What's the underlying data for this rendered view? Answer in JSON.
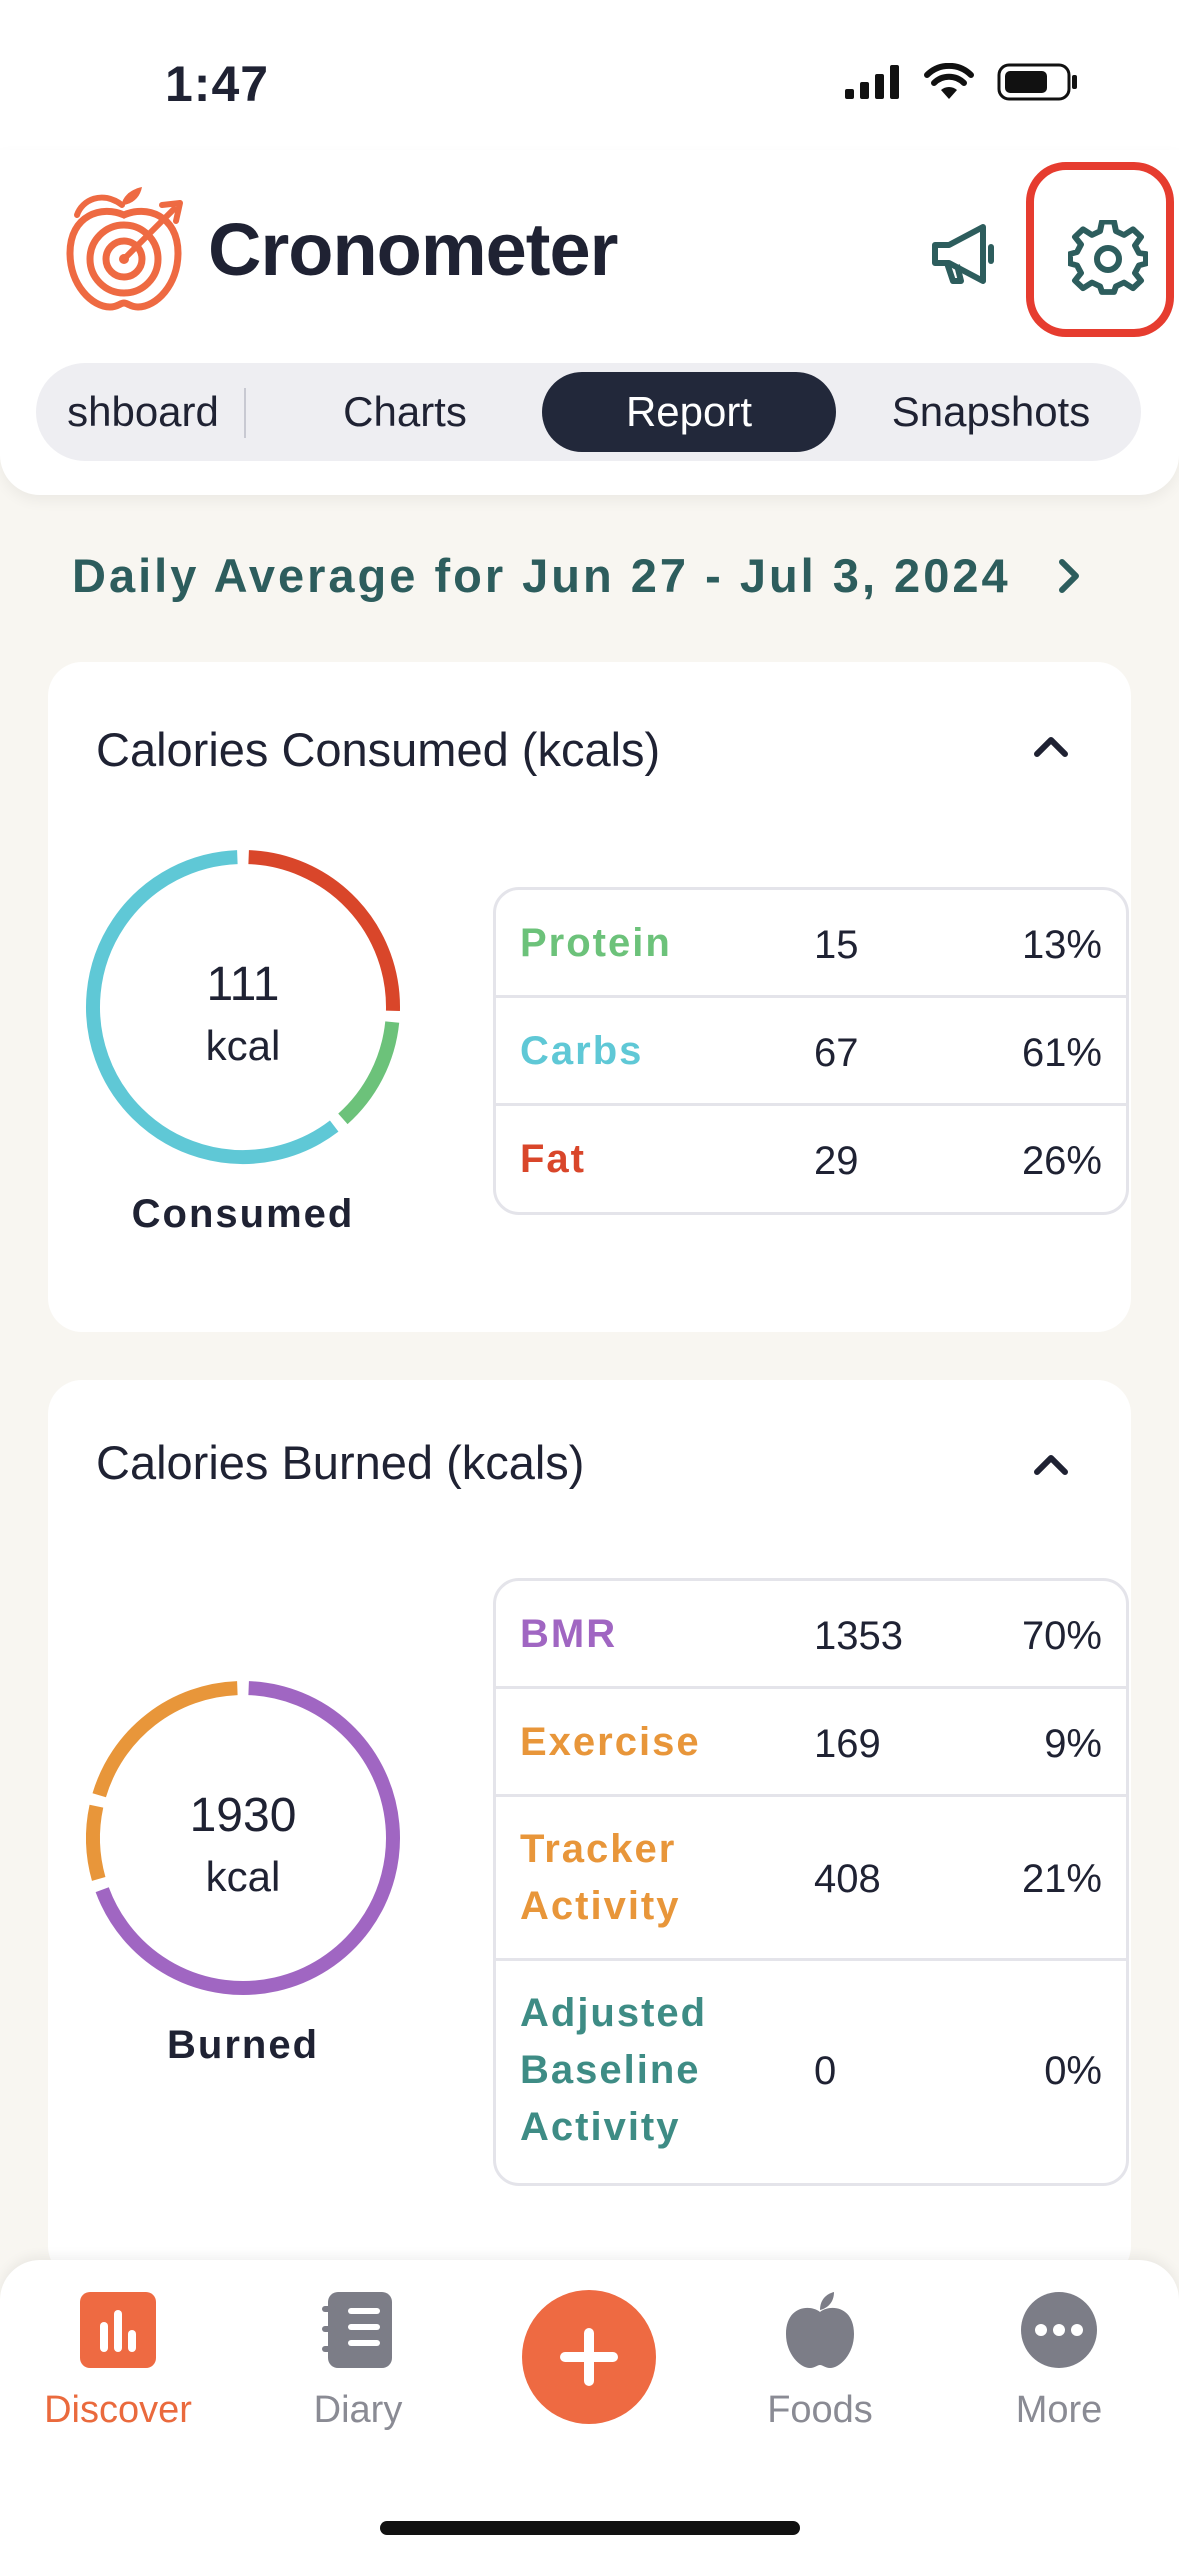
{
  "status_bar": {
    "time": "1:47"
  },
  "header": {
    "brand": "Cronometer",
    "tabs": [
      {
        "label": "shboard"
      },
      {
        "label": "Charts"
      },
      {
        "label": "Report"
      },
      {
        "label": "Snapshots"
      }
    ],
    "active_tab": "Report"
  },
  "date_range": "Daily Average for Jun 27 - Jul 3, 2024",
  "consumed": {
    "title": "Calories Consumed (kcals)",
    "value": "111",
    "unit": "kcal",
    "caption": "Consumed",
    "rows": [
      {
        "name": "Protein",
        "value": "15",
        "pct": "13%",
        "color": "#6cc27a"
      },
      {
        "name": "Carbs",
        "value": "67",
        "pct": "61%",
        "color": "#5fc8d6"
      },
      {
        "name": "Fat",
        "value": "29",
        "pct": "26%",
        "color": "#d9462a"
      }
    ],
    "segments_pct": [
      26,
      13,
      61
    ]
  },
  "burned": {
    "title": "Calories Burned (kcals)",
    "value": "1930",
    "unit": "kcal",
    "caption": "Burned",
    "rows": [
      {
        "name": "BMR",
        "value": "1353",
        "pct": "70%",
        "color": "#a066c2"
      },
      {
        "name": "Exercise",
        "value": "169",
        "pct": "9%",
        "color": "#e8963a"
      },
      {
        "name": "Tracker Activity",
        "value": "408",
        "pct": "21%",
        "color": "#e8963a"
      },
      {
        "name": "Adjusted Baseline Activity",
        "value": "0",
        "pct": "0%",
        "color": "#3e8c85"
      }
    ],
    "segments_pct": [
      70,
      9,
      21
    ]
  },
  "bottom_nav": {
    "items": [
      {
        "label": "Discover",
        "icon": "bar-chart-icon"
      },
      {
        "label": "Diary",
        "icon": "notebook-icon"
      },
      {
        "label": "Foods",
        "icon": "apple-icon"
      },
      {
        "label": "More",
        "icon": "more-icon"
      }
    ],
    "active": "Discover"
  },
  "colors": {
    "accent": "#ee6a42",
    "teal": "#2d5d5d",
    "highlight": "#e63c2f"
  }
}
